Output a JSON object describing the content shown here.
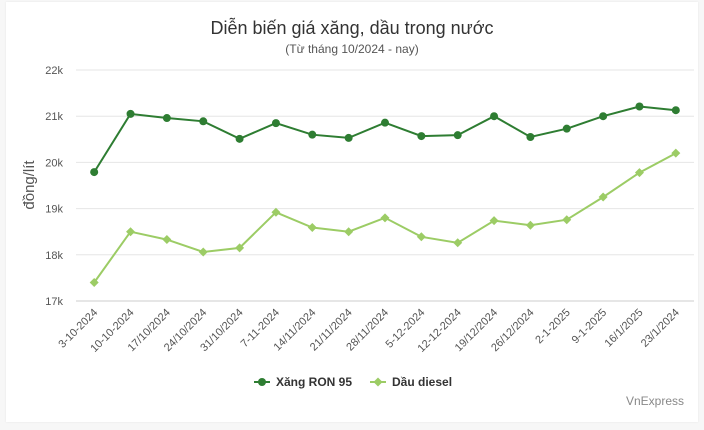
{
  "chart_data": {
    "type": "line",
    "title": "Diễn biến giá xăng, dầu trong nước",
    "subtitle": "(Từ tháng 10/2024 - nay)",
    "ylabel": "đồng/lít",
    "xlabel": "",
    "ylim": [
      17000,
      22000
    ],
    "yticks": [
      {
        "value": 17000,
        "label": "17k"
      },
      {
        "value": 18000,
        "label": "18k"
      },
      {
        "value": 19000,
        "label": "19k"
      },
      {
        "value": 20000,
        "label": "20k"
      },
      {
        "value": 21000,
        "label": "21k"
      },
      {
        "value": 22000,
        "label": "22k"
      }
    ],
    "categories": [
      "3-10-2024",
      "10-10-2024",
      "17/10/2024",
      "24/10/2024",
      "31/10/2024",
      "7-11-2024",
      "14/11/2024",
      "21/11/2024",
      "28/11/2024",
      "5-12-2024",
      "12-12-2024",
      "19/12/2024",
      "26/12/2024",
      "2-1-2025",
      "9-1-2025",
      "16/1/2025",
      "23/1/2024"
    ],
    "grid": true,
    "legend_position": "bottom",
    "series": [
      {
        "name": "Xăng RON 95",
        "color": "#2e7d32",
        "marker": "circle",
        "values": [
          19790,
          21050,
          20960,
          20890,
          20510,
          20850,
          20600,
          20530,
          20860,
          20570,
          20590,
          21000,
          20550,
          20730,
          21000,
          21210,
          21130
        ]
      },
      {
        "name": "Dầu diesel",
        "color": "#9ccc65",
        "marker": "diamond",
        "values": [
          17400,
          18500,
          18330,
          18060,
          18150,
          18920,
          18590,
          18500,
          18800,
          18390,
          18260,
          18740,
          18640,
          18760,
          19250,
          19780,
          20200
        ]
      }
    ]
  },
  "credit": "VnExpress"
}
